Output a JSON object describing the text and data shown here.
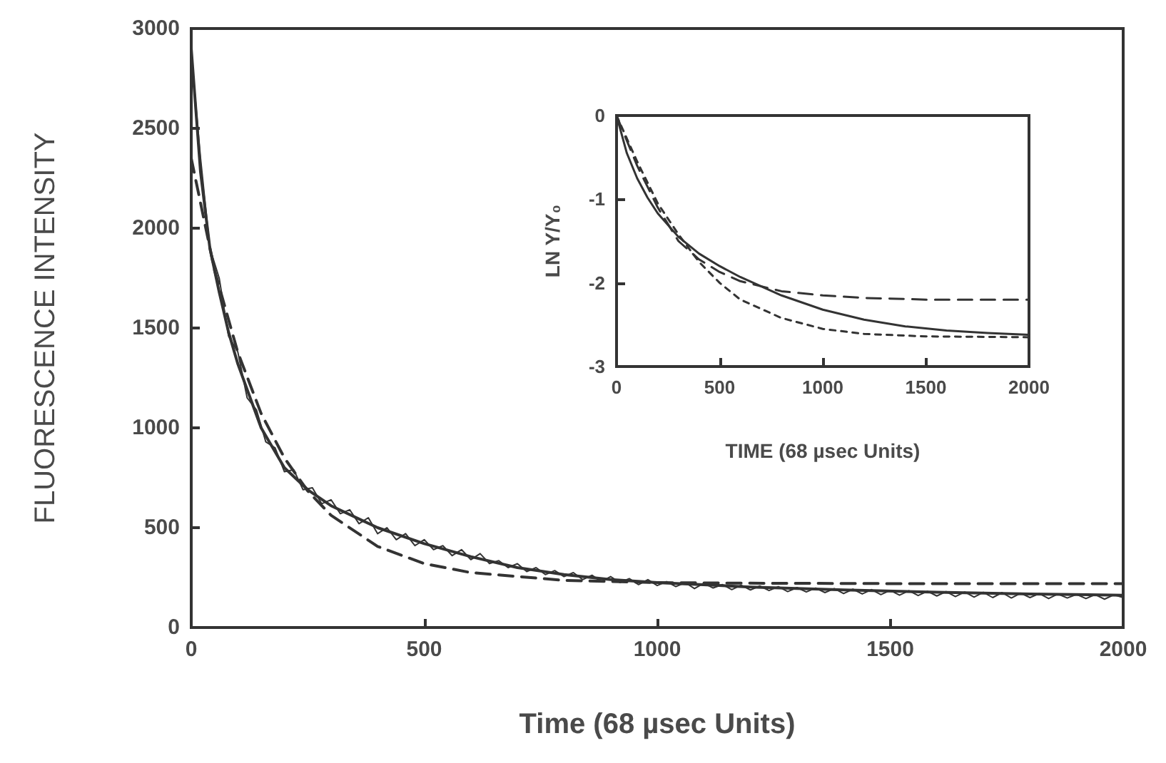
{
  "chart_data": [
    {
      "type": "line",
      "xlabel": "Time (68 µsec Units)",
      "ylabel": "FLUORESCENCE INTENSITY",
      "xlim": [
        0,
        2000
      ],
      "ylim": [
        0,
        3000
      ],
      "xticks": [
        0,
        500,
        1000,
        1500,
        2000
      ],
      "yticks": [
        0,
        500,
        1000,
        1500,
        2000,
        2500,
        3000
      ],
      "series": [
        {
          "color": "#333333",
          "line_style": "solid",
          "x": [
            0,
            20,
            40,
            60,
            80,
            100,
            120,
            140,
            160,
            180,
            200,
            220,
            240,
            260,
            280,
            300,
            320,
            340,
            360,
            380,
            400,
            420,
            440,
            460,
            480,
            500,
            520,
            540,
            560,
            580,
            600,
            620,
            640,
            660,
            680,
            700,
            720,
            740,
            760,
            780,
            800,
            820,
            840,
            860,
            880,
            900,
            920,
            940,
            960,
            980,
            1000,
            1020,
            1040,
            1060,
            1080,
            1100,
            1120,
            1140,
            1160,
            1180,
            1200,
            1220,
            1240,
            1260,
            1280,
            1300,
            1320,
            1340,
            1360,
            1380,
            1400,
            1420,
            1440,
            1460,
            1480,
            1500,
            1520,
            1540,
            1560,
            1580,
            1600,
            1620,
            1640,
            1660,
            1680,
            1700,
            1720,
            1740,
            1760,
            1780,
            1800,
            1820,
            1840,
            1860,
            1880,
            1900,
            1920,
            1940,
            1960,
            1980,
            2000
          ],
          "values": [
            2880,
            2350,
            1900,
            1750,
            1460,
            1380,
            1150,
            1090,
            930,
            900,
            780,
            790,
            690,
            700,
            620,
            640,
            570,
            590,
            520,
            550,
            470,
            500,
            440,
            470,
            410,
            440,
            390,
            410,
            360,
            390,
            340,
            370,
            320,
            335,
            300,
            320,
            280,
            300,
            265,
            285,
            255,
            275,
            240,
            262,
            230,
            255,
            225,
            245,
            215,
            240,
            210,
            230,
            205,
            225,
            195,
            222,
            198,
            215,
            190,
            212,
            188,
            208,
            185,
            205,
            180,
            200,
            178,
            198,
            175,
            195,
            170,
            192,
            168,
            190,
            165,
            186,
            162,
            184,
            160,
            182,
            158,
            180,
            155,
            178,
            152,
            176,
            150,
            175,
            148,
            172,
            150,
            170,
            145,
            168,
            148,
            166,
            145,
            165,
            142,
            164,
            150
          ]
        },
        {
          "color": "#333333",
          "line_style": "solid",
          "x": [
            0,
            20,
            40,
            60,
            80,
            100,
            150,
            200,
            250,
            300,
            400,
            500,
            600,
            700,
            800,
            900,
            1000,
            1200,
            1400,
            1600,
            1800,
            2000
          ],
          "values": [
            2900,
            2280,
            1900,
            1680,
            1480,
            1320,
            1000,
            800,
            690,
            610,
            500,
            420,
            355,
            300,
            265,
            240,
            225,
            203,
            188,
            177,
            168,
            162
          ]
        },
        {
          "color": "#333333",
          "line_style": "dashed",
          "x": [
            0,
            50,
            100,
            150,
            200,
            250,
            300,
            400,
            500,
            600,
            800,
            1000,
            1200,
            1500,
            2000
          ],
          "values": [
            2350,
            1790,
            1378,
            1072,
            849,
            684,
            562,
            406,
            320,
            275,
            236,
            225,
            222,
            220,
            220
          ]
        }
      ]
    },
    {
      "type": "line",
      "xlabel": "TIME (68 µsec Units)",
      "ylabel": "LN Y/Y₀",
      "xlim": [
        0,
        2000
      ],
      "ylim": [
        -3,
        0
      ],
      "xticks": [
        0,
        500,
        1000,
        1500,
        2000
      ],
      "yticks": [
        -3,
        -2,
        -1,
        0
      ],
      "series": [
        {
          "color": "#333333",
          "line_style": "solid",
          "x": [
            0,
            50,
            100,
            150,
            200,
            300,
            400,
            500,
            600,
            800,
            1000,
            1200,
            1400,
            1600,
            1800,
            2000
          ],
          "values": [
            0,
            -0.45,
            -0.75,
            -0.98,
            -1.17,
            -1.45,
            -1.65,
            -1.8,
            -1.93,
            -2.15,
            -2.32,
            -2.44,
            -2.52,
            -2.57,
            -2.6,
            -2.62
          ]
        },
        {
          "color": "#333333",
          "line_style": "dashed",
          "x": [
            0,
            100,
            200,
            300,
            400,
            500,
            600,
            800,
            1000,
            1200,
            1500,
            2000
          ],
          "values": [
            0,
            -0.6,
            -1.1,
            -1.5,
            -1.72,
            -1.87,
            -1.98,
            -2.1,
            -2.15,
            -2.18,
            -2.2,
            -2.2
          ]
        },
        {
          "color": "#333333",
          "line_style": "dotted",
          "x": [
            0,
            100,
            200,
            300,
            400,
            500,
            600,
            800,
            1000,
            1200,
            1500,
            2000
          ],
          "values": [
            0,
            -0.55,
            -1.05,
            -1.42,
            -1.75,
            -2.0,
            -2.2,
            -2.42,
            -2.55,
            -2.61,
            -2.64,
            -2.65
          ]
        }
      ]
    }
  ]
}
